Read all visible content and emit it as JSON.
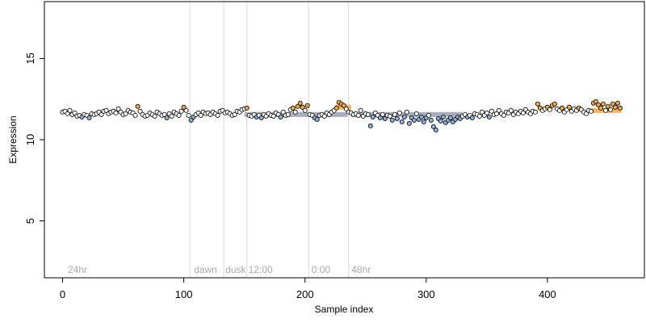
{
  "chart_data": {
    "type": "scatter",
    "xlabel": "Sample index",
    "ylabel": "Expression",
    "xlim": [
      -15,
      480
    ],
    "ylim": [
      1.5,
      18.5
    ],
    "xticks": [
      0,
      100,
      200,
      300,
      400
    ],
    "yticks": [
      5,
      10,
      15
    ],
    "grid": false,
    "colors": {
      "point_stroke": "#000000",
      "point_fill_default": "#ffffff",
      "point_fill_high": "#f4a742",
      "point_fill_low": "#8ab0e0",
      "segment_fill": "#9aa0b4",
      "segment_fill_high": "#f4a742",
      "phase_line": "#d9d9d9",
      "phase_label": "#a9a9a9"
    },
    "phase_lines": [
      105,
      133,
      152,
      203,
      236
    ],
    "phase_labels": [
      {
        "x": 3,
        "text": "24hr"
      },
      {
        "x": 107,
        "text": "dawn"
      },
      {
        "x": 133,
        "text": "dusk"
      },
      {
        "x": 152,
        "text": "12:00"
      },
      {
        "x": 204,
        "text": "0:00"
      },
      {
        "x": 237,
        "text": "48hr"
      }
    ],
    "segments": [
      {
        "x0": 150,
        "x1": 235,
        "y": 11.55,
        "color": "low"
      },
      {
        "x0": 225,
        "x1": 238,
        "y": 12.0,
        "color": "high"
      },
      {
        "x0": 238,
        "x1": 330,
        "y": 11.55,
        "color": "low"
      },
      {
        "x0": 436,
        "x1": 461,
        "y": 11.8,
        "color": "high"
      }
    ],
    "series": [
      {
        "values": [
          [
            0,
            11.7
          ],
          [
            2,
            11.75
          ],
          [
            4,
            11.6
          ],
          [
            6,
            11.8
          ],
          [
            8,
            11.55
          ],
          [
            10,
            11.65
          ],
          [
            12,
            11.45
          ],
          [
            14,
            11.5
          ],
          [
            16,
            11.4
          ],
          [
            18,
            11.55
          ],
          [
            20,
            11.5
          ],
          [
            22,
            11.35
          ],
          [
            24,
            11.6
          ],
          [
            26,
            11.55
          ],
          [
            28,
            11.6
          ],
          [
            30,
            11.7
          ],
          [
            32,
            11.55
          ],
          [
            34,
            11.75
          ],
          [
            36,
            11.8
          ],
          [
            38,
            11.6
          ],
          [
            40,
            11.7
          ],
          [
            42,
            11.75
          ],
          [
            44,
            11.65
          ],
          [
            46,
            11.9
          ],
          [
            48,
            11.7
          ],
          [
            50,
            11.55
          ],
          [
            52,
            11.6
          ],
          [
            54,
            11.8
          ],
          [
            56,
            11.7
          ],
          [
            58,
            11.65
          ],
          [
            60,
            11.5
          ],
          [
            62,
            12.05
          ],
          [
            64,
            11.75
          ],
          [
            66,
            11.55
          ],
          [
            68,
            11.45
          ],
          [
            70,
            11.5
          ],
          [
            72,
            11.65
          ],
          [
            74,
            11.55
          ],
          [
            76,
            11.45
          ],
          [
            78,
            11.7
          ],
          [
            80,
            11.6
          ],
          [
            82,
            11.5
          ],
          [
            84,
            11.55
          ],
          [
            86,
            11.35
          ],
          [
            88,
            11.6
          ],
          [
            90,
            11.45
          ],
          [
            92,
            11.7
          ],
          [
            94,
            11.6
          ],
          [
            96,
            11.5
          ],
          [
            98,
            11.75
          ],
          [
            100,
            12.0
          ],
          [
            102,
            11.8
          ],
          [
            104,
            11.5
          ],
          [
            106,
            11.2
          ],
          [
            108,
            11.4
          ],
          [
            110,
            11.55
          ],
          [
            112,
            11.65
          ],
          [
            114,
            11.5
          ],
          [
            116,
            11.7
          ],
          [
            118,
            11.6
          ],
          [
            120,
            11.65
          ],
          [
            122,
            11.55
          ],
          [
            124,
            11.7
          ],
          [
            126,
            11.6
          ],
          [
            128,
            11.5
          ],
          [
            130,
            11.75
          ],
          [
            132,
            11.8
          ],
          [
            134,
            11.65
          ],
          [
            136,
            11.7
          ],
          [
            138,
            11.6
          ],
          [
            140,
            11.5
          ],
          [
            142,
            11.55
          ],
          [
            144,
            11.75
          ],
          [
            146,
            11.7
          ],
          [
            148,
            11.85
          ],
          [
            150,
            11.9
          ],
          [
            152,
            11.95
          ],
          [
            154,
            11.5
          ],
          [
            156,
            11.45
          ],
          [
            158,
            11.55
          ],
          [
            160,
            11.4
          ],
          [
            162,
            11.5
          ],
          [
            164,
            11.35
          ],
          [
            166,
            11.55
          ],
          [
            168,
            11.45
          ],
          [
            170,
            11.6
          ],
          [
            172,
            11.5
          ],
          [
            174,
            11.45
          ],
          [
            176,
            11.65
          ],
          [
            178,
            11.55
          ],
          [
            180,
            11.4
          ],
          [
            182,
            11.7
          ],
          [
            184,
            11.5
          ],
          [
            186,
            11.55
          ],
          [
            188,
            11.85
          ],
          [
            190,
            11.95
          ],
          [
            192,
            11.7
          ],
          [
            194,
            12.05
          ],
          [
            196,
            12.25
          ],
          [
            198,
            12.0
          ],
          [
            200,
            11.8
          ],
          [
            202,
            12.1
          ],
          [
            204,
            11.55
          ],
          [
            206,
            11.5
          ],
          [
            208,
            11.35
          ],
          [
            210,
            11.25
          ],
          [
            212,
            11.5
          ],
          [
            214,
            11.55
          ],
          [
            216,
            11.45
          ],
          [
            218,
            11.65
          ],
          [
            220,
            11.55
          ],
          [
            222,
            11.7
          ],
          [
            224,
            11.8
          ],
          [
            226,
            11.95
          ],
          [
            228,
            12.3
          ],
          [
            230,
            12.2
          ],
          [
            232,
            12.1
          ],
          [
            234,
            11.9
          ],
          [
            236,
            11.7
          ],
          [
            238,
            11.65
          ],
          [
            240,
            11.55
          ],
          [
            242,
            11.6
          ],
          [
            244,
            11.5
          ],
          [
            246,
            11.8
          ],
          [
            248,
            11.45
          ],
          [
            250,
            11.6
          ],
          [
            252,
            11.55
          ],
          [
            254,
            10.85
          ],
          [
            256,
            11.4
          ],
          [
            258,
            11.65
          ],
          [
            260,
            11.5
          ],
          [
            262,
            11.35
          ],
          [
            264,
            11.55
          ],
          [
            266,
            11.3
          ],
          [
            268,
            11.5
          ],
          [
            270,
            11.45
          ],
          [
            272,
            11.2
          ],
          [
            274,
            11.55
          ],
          [
            276,
            11.3
          ],
          [
            278,
            11.65
          ],
          [
            280,
            11.1
          ],
          [
            282,
            11.4
          ],
          [
            284,
            11.7
          ],
          [
            286,
            11.0
          ],
          [
            288,
            11.35
          ],
          [
            290,
            11.2
          ],
          [
            292,
            11.6
          ],
          [
            294,
            11.25
          ],
          [
            296,
            11.4
          ],
          [
            298,
            11.1
          ],
          [
            300,
            11.35
          ],
          [
            302,
            11.5
          ],
          [
            304,
            11.2
          ],
          [
            306,
            10.8
          ],
          [
            308,
            10.6
          ],
          [
            310,
            11.3
          ],
          [
            312,
            11.15
          ],
          [
            314,
            11.4
          ],
          [
            316,
            11.05
          ],
          [
            318,
            11.2
          ],
          [
            320,
            11.35
          ],
          [
            322,
            11.1
          ],
          [
            324,
            11.25
          ],
          [
            326,
            11.4
          ],
          [
            328,
            11.3
          ],
          [
            330,
            11.45
          ],
          [
            332,
            11.55
          ],
          [
            334,
            11.4
          ],
          [
            336,
            11.5
          ],
          [
            338,
            11.35
          ],
          [
            340,
            11.6
          ],
          [
            342,
            11.55
          ],
          [
            344,
            11.45
          ],
          [
            346,
            11.7
          ],
          [
            348,
            11.5
          ],
          [
            350,
            11.65
          ],
          [
            352,
            11.4
          ],
          [
            354,
            11.75
          ],
          [
            356,
            11.55
          ],
          [
            358,
            11.6
          ],
          [
            360,
            11.8
          ],
          [
            362,
            11.6
          ],
          [
            364,
            11.5
          ],
          [
            366,
            11.7
          ],
          [
            368,
            11.65
          ],
          [
            370,
            11.8
          ],
          [
            372,
            11.55
          ],
          [
            374,
            11.7
          ],
          [
            376,
            11.6
          ],
          [
            378,
            11.75
          ],
          [
            380,
            11.65
          ],
          [
            382,
            11.85
          ],
          [
            384,
            11.7
          ],
          [
            386,
            11.6
          ],
          [
            388,
            11.75
          ],
          [
            390,
            11.7
          ],
          [
            392,
            12.2
          ],
          [
            394,
            11.95
          ],
          [
            396,
            11.8
          ],
          [
            398,
            11.9
          ],
          [
            400,
            12.0
          ],
          [
            402,
            11.85
          ],
          [
            404,
            12.1
          ],
          [
            406,
            12.2
          ],
          [
            408,
            11.9
          ],
          [
            410,
            11.8
          ],
          [
            412,
            11.95
          ],
          [
            414,
            11.7
          ],
          [
            416,
            11.85
          ],
          [
            418,
            12.0
          ],
          [
            420,
            11.75
          ],
          [
            422,
            11.9
          ],
          [
            424,
            11.8
          ],
          [
            426,
            11.95
          ],
          [
            428,
            11.85
          ],
          [
            430,
            11.7
          ],
          [
            432,
            11.6
          ],
          [
            434,
            11.8
          ],
          [
            436,
            11.75
          ],
          [
            438,
            12.25
          ],
          [
            440,
            12.35
          ],
          [
            442,
            12.15
          ],
          [
            444,
            11.95
          ],
          [
            446,
            12.2
          ],
          [
            448,
            11.8
          ],
          [
            450,
            12.05
          ],
          [
            452,
            11.85
          ],
          [
            454,
            12.2
          ],
          [
            456,
            12.0
          ],
          [
            458,
            12.25
          ],
          [
            460,
            11.95
          ]
        ]
      }
    ]
  }
}
